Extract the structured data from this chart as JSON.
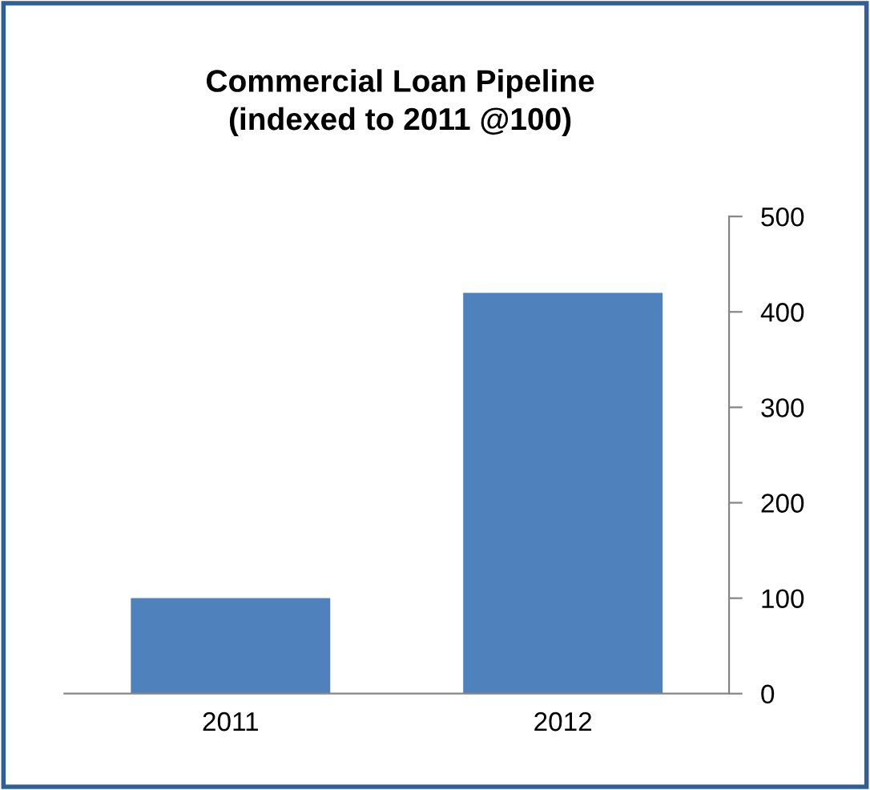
{
  "chart_data": {
    "type": "bar",
    "title": "Commercial Loan Pipeline\n(indexed to 2011 @100)",
    "categories": [
      "2011",
      "2012"
    ],
    "values": [
      100,
      420
    ],
    "color": "#4f81bd",
    "ylim": [
      0,
      500
    ],
    "yticks": [
      0,
      100,
      200,
      300,
      400,
      500
    ],
    "grid": false,
    "legend": false
  }
}
